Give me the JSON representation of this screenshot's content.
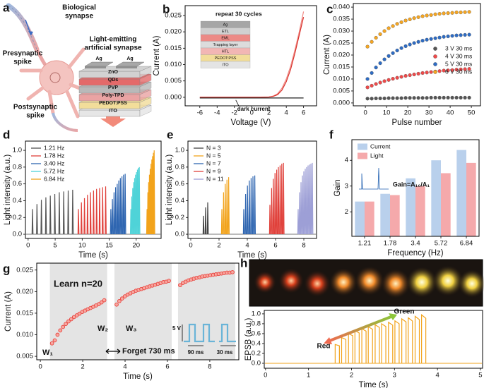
{
  "diagram": {
    "label": "a",
    "bio_label": [
      "Biological",
      "synapse"
    ],
    "pre_label": [
      "Presynaptic",
      "spike"
    ],
    "post_label": [
      "Postsynaptic",
      "spike"
    ],
    "device_label": [
      "Light-emitting",
      "artificial synapse"
    ],
    "layers": [
      "ZnO",
      "QDs",
      "PVP",
      "Poly-TPD",
      "PEDOT:PSS",
      "ITO"
    ],
    "electrodes": [
      "Ag",
      "Ag"
    ]
  },
  "chart_data": [
    {
      "type": "line",
      "label": "b",
      "x_label": "Voltage (V)",
      "y_label": "Current (A)",
      "annotations": [
        "repeat 30 cycles"
      ],
      "inset_layers": [
        "Ag",
        "ETL",
        "EML",
        "Trapping layer",
        "HTL",
        "PEDOT:PSS",
        "ITO"
      ],
      "x": [
        -6,
        -5,
        -4,
        -3,
        -2,
        -1,
        0,
        1,
        2,
        2.5,
        3,
        3.5,
        4,
        4.5,
        5,
        5.5,
        6
      ],
      "series": [
        {
          "color": "#f08a84",
          "values": [
            0,
            0,
            0,
            0,
            0,
            0,
            0,
            0,
            0.0001,
            0.0004,
            0.0011,
            0.0028,
            0.0056,
            0.0095,
            0.0145,
            0.02,
            0.0262
          ]
        },
        {
          "color": "#d8302a",
          "values": [
            0,
            0,
            0,
            0,
            0,
            0,
            0,
            0,
            0.0001,
            0.0003,
            0.0008,
            0.0022,
            0.0048,
            0.0085,
            0.0135,
            0.019,
            0.0245
          ]
        },
        {
          "name": "dark current",
          "color": "#222222",
          "values": [
            -0.0002,
            -0.0002,
            -0.0002,
            -0.0002,
            -0.0002,
            -0.0002,
            -0.0002,
            -0.0002,
            -0.0002,
            -0.0002,
            -0.0002,
            -0.0002,
            -0.0002,
            -0.0002,
            -0.0002,
            -0.0002,
            -0.0002
          ]
        }
      ],
      "xlim": [
        -7.7,
        7.5
      ],
      "xticks": [
        -6,
        -4,
        -2,
        0,
        2,
        4,
        6
      ],
      "ylim": [
        -0.0026,
        0.028
      ],
      "yticks": [
        {
          "value": 0,
          "label": "0.000"
        },
        0.005,
        {
          "value": 0.01,
          "label": "0.010"
        },
        0.015,
        {
          "value": 0.02,
          "label": "0.020"
        },
        0.025
      ]
    },
    {
      "type": "scatter",
      "label": "c",
      "x_label": "Pulse number",
      "y_label": "Current (A)",
      "legend": "center right",
      "x": [
        1,
        3,
        5,
        7,
        9,
        11,
        13,
        15,
        17,
        19,
        21,
        23,
        25,
        27,
        29,
        31,
        33,
        35,
        37,
        39,
        41,
        43,
        45,
        47,
        49
      ],
      "series": [
        {
          "name": "3 V 30 ms",
          "color": "#555555",
          "values": [
            0.0018,
            0.0018,
            0.0019,
            0.0019,
            0.0019,
            0.002,
            0.002,
            0.002,
            0.002,
            0.0021,
            0.0021,
            0.0021,
            0.0021,
            0.0021,
            0.0021,
            0.0022,
            0.0022,
            0.0022,
            0.0022,
            0.0022,
            0.0022,
            0.0022,
            0.0022,
            0.0022,
            0.0022
          ]
        },
        {
          "name": "4 V 30 ms",
          "color": "#ee4a4a",
          "values": [
            0.0065,
            0.0072,
            0.0079,
            0.0085,
            0.0091,
            0.0096,
            0.0101,
            0.0105,
            0.0109,
            0.0113,
            0.0116,
            0.0119,
            0.0122,
            0.0125,
            0.0127,
            0.0129,
            0.0131,
            0.0133,
            0.0135,
            0.0136,
            0.0137,
            0.0139,
            0.014,
            0.0141,
            0.0142
          ]
        },
        {
          "name": "5 V 30 ms",
          "color": "#2e6cc4",
          "values": [
            0.01,
            0.0125,
            0.0148,
            0.0166,
            0.0182,
            0.0196,
            0.0208,
            0.0219,
            0.0229,
            0.0237,
            0.0244,
            0.025,
            0.0255,
            0.026,
            0.0264,
            0.0267,
            0.027,
            0.0273,
            0.0276,
            0.0278,
            0.028,
            0.0282,
            0.0283,
            0.0284,
            0.0285
          ]
        },
        {
          "name": "6 V 30 ms",
          "color": "#f5a623",
          "values": [
            0.0235,
            0.0255,
            0.0272,
            0.0287,
            0.03,
            0.0312,
            0.0321,
            0.033,
            0.0337,
            0.0344,
            0.0349,
            0.0354,
            0.0358,
            0.0362,
            0.0365,
            0.0367,
            0.037,
            0.0372,
            0.0374,
            0.0375,
            0.0376,
            0.0378,
            0.0378,
            0.0379,
            0.038
          ]
        }
      ],
      "xlim": [
        -5.7,
        54.3
      ],
      "xticks": [
        0,
        10,
        20,
        30,
        40,
        50
      ],
      "ylim": [
        -0.0012,
        0.0415
      ],
      "yticks": [
        {
          "value": 0,
          "label": "0.000"
        },
        0.005,
        {
          "value": 0.01,
          "label": "0.010"
        },
        0.015,
        {
          "value": 0.02,
          "label": "0.020"
        },
        0.025,
        {
          "value": 0.03,
          "label": "0.030"
        },
        0.035,
        {
          "value": 0.04,
          "label": "0.040"
        }
      ]
    },
    {
      "type": "spikes",
      "label": "d",
      "x_label": "Time (s)",
      "y_label": "Light intensity (a.u.)",
      "legend": "upper left",
      "series": [
        {
          "name": "1.21 Hz",
          "color": "#555555",
          "x": [
            0.8,
            1.63,
            2.45,
            3.28,
            4.1,
            4.93,
            5.76,
            6.58,
            7.41,
            8.24
          ],
          "values": [
            0.3,
            0.36,
            0.41,
            0.44,
            0.46,
            0.48,
            0.5,
            0.51,
            0.52,
            0.53
          ]
        },
        {
          "name": "1.78 Hz",
          "color": "#e0403a",
          "x": [
            9.3,
            9.86,
            10.42,
            10.98,
            11.54,
            12.1,
            12.66,
            13.22,
            13.78,
            14.34
          ],
          "values": [
            0.3,
            0.38,
            0.43,
            0.47,
            0.5,
            0.52,
            0.54,
            0.55,
            0.56,
            0.57
          ]
        },
        {
          "name": "3.40 Hz",
          "color": "#2f66b1",
          "x": [
            15.3,
            15.59,
            15.89,
            16.18,
            16.48,
            16.77,
            17.06,
            17.36,
            17.65,
            17.95
          ],
          "values": [
            0.3,
            0.42,
            0.5,
            0.56,
            0.6,
            0.64,
            0.67,
            0.69,
            0.71,
            0.72
          ]
        },
        {
          "name": "5.72 Hz",
          "color": "#4fd3d8",
          "x": [
            19,
            19.17,
            19.35,
            19.52,
            19.7,
            19.87,
            20.05,
            20.22,
            20.4,
            20.57
          ],
          "values": [
            0.3,
            0.45,
            0.55,
            0.62,
            0.67,
            0.71,
            0.74,
            0.77,
            0.79,
            0.8
          ]
        },
        {
          "name": "6.84 Hz",
          "color": "#f2a31b",
          "x": [
            22,
            22.15,
            22.29,
            22.44,
            22.58,
            22.73,
            22.88,
            23.02,
            23.17,
            23.32
          ],
          "values": [
            0.3,
            0.5,
            0.62,
            0.71,
            0.78,
            0.84,
            0.89,
            0.93,
            0.97,
            1.0
          ]
        }
      ],
      "xlim": [
        -0.5,
        24.6
      ],
      "xticks": [
        0,
        5,
        10,
        15,
        20
      ],
      "ylim": [
        -0.05,
        1.11
      ],
      "yticks": [
        {
          "value": 0,
          "label": "0.0"
        },
        0.2,
        0.4,
        0.6,
        0.8,
        {
          "value": 1,
          "label": "1.0"
        }
      ]
    },
    {
      "type": "spikes",
      "label": "e",
      "x_label": "Time (s)",
      "y_label": "Light intensity (a.u.)",
      "legend": "upper left",
      "series": [
        {
          "name": "N = 3",
          "color": "#444444",
          "x": [
            0.9,
            1.05,
            1.2
          ],
          "values": [
            0.22,
            0.32,
            0.38
          ]
        },
        {
          "name": "N = 5",
          "color": "#f2a31b",
          "x": [
            2.2,
            2.32,
            2.44,
            2.56,
            2.68
          ],
          "values": [
            0.3,
            0.5,
            0.6,
            0.65,
            0.68
          ]
        },
        {
          "name": "N = 7",
          "color": "#2f66b1",
          "x": [
            3.75,
            3.88,
            4.01,
            4.14,
            4.27,
            4.4,
            4.53
          ],
          "values": [
            0.3,
            0.48,
            0.58,
            0.64,
            0.67,
            0.69,
            0.7
          ]
        },
        {
          "name": "N = 9",
          "color": "#e0403a",
          "x": [
            5.6,
            5.72,
            5.84,
            5.96,
            6.08,
            6.2,
            6.32,
            6.44,
            6.56
          ],
          "values": [
            0.35,
            0.55,
            0.66,
            0.73,
            0.77,
            0.8,
            0.82,
            0.84,
            0.85
          ]
        },
        {
          "name": "N = 11",
          "color": "#9d9fd6",
          "x": [
            7.6,
            7.7,
            7.8,
            7.9,
            8.0,
            8.1,
            8.2,
            8.3,
            8.4,
            8.5,
            8.6
          ],
          "values": [
            0.3,
            0.5,
            0.62,
            0.7,
            0.75,
            0.78,
            0.8,
            0.82,
            0.83,
            0.84,
            0.85
          ]
        }
      ],
      "xlim": [
        -0.2,
        8.9
      ],
      "xticks": [
        0,
        2,
        4,
        6,
        8
      ],
      "ylim": [
        -0.05,
        1.11
      ],
      "yticks": [
        {
          "value": 0,
          "label": "0.0"
        },
        0.2,
        0.4,
        0.6,
        0.8,
        {
          "value": 1,
          "label": "1.0"
        }
      ]
    },
    {
      "type": "bar",
      "label": "f",
      "x_label": "Frequency (Hz)",
      "y_label": "Gain",
      "legend": "upper left",
      "annotations": [
        "Gain=A₁₀/A₁"
      ],
      "categories": [
        "1.21",
        "1.78",
        "3.4",
        "5.72",
        "6.84"
      ],
      "series": [
        {
          "name": "Current",
          "color": "#b9d0ec",
          "values": [
            2.4,
            2.7,
            3.3,
            4.0,
            4.4
          ]
        },
        {
          "name": "Light",
          "color": "#f5a9ab",
          "values": [
            2.4,
            2.65,
            3.0,
            3.5,
            3.9
          ]
        }
      ],
      "ylim": [
        1.05,
        4.8
      ],
      "yticks": [
        2,
        3,
        4
      ]
    },
    {
      "type": "scatter",
      "label": "g",
      "x_label": "Time (s)",
      "y_label": "Current (A)",
      "color": "#e8403a",
      "annotations": [
        "Learn n=20",
        "W₁",
        "W₂",
        "W₃",
        "Forget 730 ms",
        "5 V",
        "90 ms",
        "30 ms"
      ],
      "series": [
        {
          "x": [
            0.55,
            0.68,
            0.81,
            0.94,
            1.07,
            1.2,
            1.33,
            1.46,
            1.59,
            1.72,
            1.85,
            1.98,
            2.11,
            2.24,
            2.37,
            2.5,
            2.63,
            2.76,
            2.89,
            3.02
          ],
          "values": [
            0.008,
            0.0087,
            0.01,
            0.011,
            0.0118,
            0.0125,
            0.0131,
            0.0136,
            0.0141,
            0.0145,
            0.0149,
            0.0153,
            0.0156,
            0.0159,
            0.0162,
            0.0165,
            0.0168,
            0.0171,
            0.0175,
            0.018
          ]
        },
        {
          "x": [
            3.6,
            3.73,
            3.86,
            3.99,
            4.12,
            4.25,
            4.38,
            4.51,
            4.64,
            4.77,
            4.9,
            5.03,
            5.16,
            5.29,
            5.42,
            5.55,
            5.68,
            5.81,
            5.94,
            6.07
          ],
          "values": [
            0.017,
            0.0178,
            0.0184,
            0.0189,
            0.0193,
            0.0196,
            0.0199,
            0.0202,
            0.0204,
            0.0206,
            0.0208,
            0.021,
            0.0212,
            0.0214,
            0.0216,
            0.0218,
            0.022,
            0.0222,
            0.0223,
            0.0225
          ]
        },
        {
          "x": [
            6.6,
            6.73,
            6.86,
            6.99,
            7.12,
            7.25,
            7.38,
            7.51,
            7.64,
            7.77,
            7.9,
            8.03,
            8.16,
            8.29,
            8.42,
            8.55,
            8.68,
            8.81,
            8.94,
            9.07
          ],
          "values": [
            0.0215,
            0.022,
            0.0223,
            0.0226,
            0.0228,
            0.023,
            0.0232,
            0.0233,
            0.0235,
            0.0236,
            0.0237,
            0.0238,
            0.0239,
            0.024,
            0.0241,
            0.0242,
            0.0243,
            0.0244,
            0.0244,
            0.0245
          ]
        }
      ],
      "xlim": [
        -0.17,
        9.37
      ],
      "xticks": [
        0,
        2,
        4,
        6,
        8
      ],
      "ylim": [
        0.0042,
        0.0266
      ],
      "yticks": [
        0.005,
        {
          "value": 0.01,
          "label": "0.010"
        },
        0.015,
        {
          "value": 0.02,
          "label": "0.020"
        },
        0.025
      ]
    },
    {
      "type": "spikes",
      "label": "h",
      "x_label": "Time (s)",
      "y_label": "EPSB (a.u.)",
      "annotations": [
        "Green",
        "Red"
      ],
      "series": [
        {
          "color": "#f2a31b",
          "x": [
            1.62,
            1.77,
            1.93,
            2.08,
            2.24,
            2.39,
            2.55,
            2.7,
            2.86,
            3.01,
            3.17,
            3.32,
            3.48,
            3.63
          ],
          "values": [
            0.38,
            0.52,
            0.6,
            0.66,
            0.7,
            0.74,
            0.78,
            0.8,
            0.83,
            0.86,
            0.9,
            0.92,
            0.95,
            0.98
          ]
        }
      ],
      "xlim": [
        -0.03,
        5.05
      ],
      "xticks": [
        0,
        1,
        2,
        3,
        4,
        5
      ],
      "ylim": [
        -0.1,
        1.07
      ],
      "yticks": [
        {
          "value": 0,
          "label": "0.0"
        },
        0.2,
        0.4,
        0.6,
        0.8,
        {
          "value": 1,
          "label": "1.0"
        }
      ]
    }
  ]
}
